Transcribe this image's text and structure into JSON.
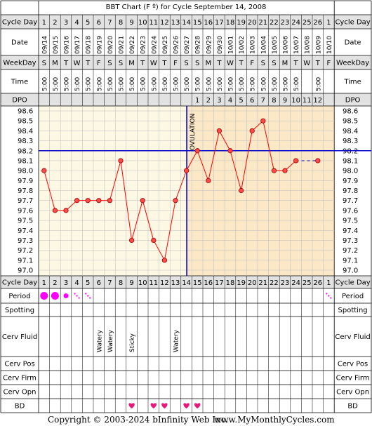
{
  "chart_data": {
    "type": "line",
    "title": "BBT Chart (F º) for Cycle September 14, 2008",
    "row_labels": {
      "cycle_day": "Cycle Day",
      "date": "Date",
      "weekday": "WeekDay",
      "time": "Time",
      "dpo": "DPO",
      "period": "Period",
      "spotting": "Spotting",
      "cerv_fluid": "Cerv Fluid",
      "cerv_pos": "Cerv Pos",
      "cerv_firm": "Cerv Firm",
      "cerv_opn": "Cerv Opn",
      "bd": "BD"
    },
    "cycle_days": [
      "1",
      "2",
      "3",
      "4",
      "5",
      "6",
      "7",
      "8",
      "9",
      "10",
      "11",
      "12",
      "13",
      "14",
      "15",
      "16",
      "17",
      "18",
      "19",
      "20",
      "21",
      "22",
      "23",
      "24",
      "25",
      "26",
      "1"
    ],
    "dates": [
      "09/14",
      "09/15",
      "09/16",
      "09/17",
      "09/18",
      "09/19",
      "09/20",
      "09/21",
      "09/22",
      "09/23",
      "09/24",
      "09/25",
      "09/26",
      "09/27",
      "09/28",
      "09/29",
      "09/30",
      "10/01",
      "10/02",
      "10/03",
      "10/04",
      "10/05",
      "10/06",
      "10/07",
      "10/08",
      "10/09",
      "10/10"
    ],
    "weekdays": [
      "S",
      "M",
      "T",
      "W",
      "T",
      "F",
      "S",
      "S",
      "M",
      "T",
      "W",
      "T",
      "F",
      "S",
      "S",
      "M",
      "T",
      "W",
      "T",
      "F",
      "S",
      "S",
      "M",
      "T",
      "W",
      "T",
      "F"
    ],
    "times": [
      "5:00",
      "5:00",
      "5:00",
      "5:00",
      "5:00",
      "5:00",
      "5:00",
      "5:00",
      "5:00",
      "5:00",
      "5:00",
      "5:00",
      "5:00",
      "5:00",
      "5:00",
      "5:00",
      "5:00",
      "5:00",
      "5:00",
      "5:00",
      "5:00",
      "5:00",
      "5:00",
      "5:00",
      "",
      "5:00",
      ""
    ],
    "dpo": [
      "",
      "",
      "",
      "",
      "",
      "",
      "",
      "",
      "",
      "",
      "",
      "",
      "",
      "",
      "1",
      "2",
      "3",
      "4",
      "5",
      "6",
      "7",
      "8",
      "9",
      "10",
      "11",
      "12",
      ""
    ],
    "y_ticks": [
      "98.6",
      "98.5",
      "98.4",
      "98.3",
      "98.2",
      "98.1",
      "98.0",
      "97.9",
      "97.8",
      "97.7",
      "97.6",
      "97.5",
      "97.4",
      "97.3",
      "97.2",
      "97.1",
      "97.0"
    ],
    "ylim": [
      97.0,
      98.6
    ],
    "temps": [
      98.0,
      97.6,
      97.6,
      97.7,
      97.7,
      97.7,
      97.7,
      98.1,
      97.3,
      97.7,
      97.3,
      97.1,
      97.7,
      98.0,
      98.2,
      97.9,
      98.4,
      98.2,
      97.8,
      98.4,
      98.5,
      98.0,
      98.0,
      98.1,
      null,
      98.1,
      null
    ],
    "coverline": 98.2,
    "ovulation_day": 14,
    "ovulation_label": "OVULATION",
    "period": [
      "heavy",
      "heavy",
      "medium",
      "light",
      "light",
      "",
      "",
      "",
      "",
      "",
      "",
      "",
      "",
      "",
      "",
      "",
      "",
      "",
      "",
      "",
      "",
      "",
      "",
      "",
      "",
      "",
      "light"
    ],
    "cerv_fluid": [
      "",
      "",
      "",
      "",
      "",
      "Watery",
      "Watery",
      "",
      "Sticky",
      "",
      "",
      "",
      "Watery",
      "",
      "",
      "",
      "",
      "",
      "",
      "",
      "",
      "",
      "",
      "",
      "",
      "",
      ""
    ],
    "bd": [
      false,
      false,
      false,
      false,
      false,
      false,
      false,
      false,
      true,
      false,
      true,
      true,
      false,
      true,
      true,
      false,
      false,
      false,
      false,
      false,
      false,
      false,
      false,
      false,
      false,
      false,
      false
    ],
    "colors": {
      "line": "#ff0000",
      "point_fill": "#ff4a4a",
      "coverline": "#0000cc",
      "ovulation_line": "#0000cc",
      "pre_ov_bg": "#fdf8e4",
      "post_ov_bg": "#fbe8c6",
      "header_bg": "#e2e2e2",
      "period": "#ff00ff",
      "bd": "#e8187a"
    }
  },
  "footer": {
    "copyright": "Copyright © 2003-2024 bInfinity Web Inc.",
    "site": "www.MyMonthlyCycles.com"
  }
}
